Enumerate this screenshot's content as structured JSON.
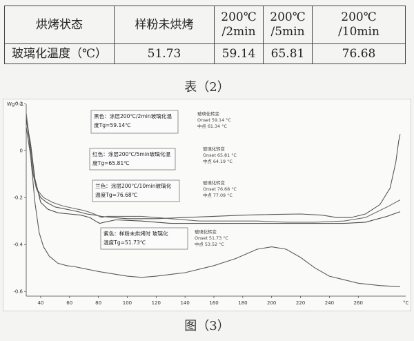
{
  "table": {
    "header": [
      "烘烤状态",
      "样粉未烘烤",
      "200℃\n/2min",
      "200℃\n/5min",
      "200℃\n/10min"
    ],
    "row": [
      "玻璃化温度（℃）",
      "51.73",
      "59.14",
      "65.81",
      "76.68"
    ],
    "caption": "表（2）"
  },
  "figure_caption": "图（3）",
  "chart_data": {
    "type": "line",
    "ylabel": "Wg^-1",
    "xlabel": "°C",
    "xlim": [
      30,
      290
    ],
    "ylim": [
      -0.62,
      0.18
    ],
    "x_ticks": [
      "40",
      "60",
      "80",
      "100",
      "120",
      "140",
      "160",
      "180",
      "200",
      "220",
      "240",
      "260"
    ],
    "y_ticks": [
      "0.2",
      "0",
      "-0.2",
      "-0.4",
      "-0.6"
    ],
    "grid": false,
    "series": [
      {
        "color": "#555555",
        "points": [
          [
            30,
            0.14
          ],
          [
            32,
            0.05
          ],
          [
            34,
            -0.08
          ],
          [
            37,
            -0.16
          ],
          [
            40,
            -0.2
          ],
          [
            44,
            -0.22
          ],
          [
            50,
            -0.24
          ],
          [
            58,
            -0.25
          ],
          [
            66,
            -0.26
          ],
          [
            72,
            -0.27
          ],
          [
            78,
            -0.275
          ],
          [
            82,
            -0.28
          ],
          [
            90,
            -0.285
          ],
          [
            100,
            -0.29
          ],
          [
            120,
            -0.29
          ],
          [
            140,
            -0.285
          ],
          [
            160,
            -0.28
          ],
          [
            180,
            -0.275
          ],
          [
            200,
            -0.272
          ],
          [
            220,
            -0.27
          ],
          [
            235,
            -0.275
          ],
          [
            245,
            -0.285
          ],
          [
            255,
            -0.285
          ],
          [
            265,
            -0.27
          ],
          [
            275,
            -0.23
          ],
          [
            282,
            -0.16
          ],
          [
            286,
            -0.05
          ],
          [
            288,
            0.04
          ],
          [
            289,
            0.07
          ]
        ]
      },
      {
        "color": "#6a6a6a",
        "points": [
          [
            30,
            0.16
          ],
          [
            32,
            0.06
          ],
          [
            35,
            -0.1
          ],
          [
            38,
            -0.17
          ],
          [
            42,
            -0.2
          ],
          [
            48,
            -0.22
          ],
          [
            55,
            -0.235
          ],
          [
            62,
            -0.245
          ],
          [
            70,
            -0.255
          ],
          [
            75,
            -0.265
          ],
          [
            79,
            -0.275
          ],
          [
            82,
            -0.285
          ],
          [
            86,
            -0.28
          ],
          [
            95,
            -0.28
          ],
          [
            110,
            -0.28
          ],
          [
            130,
            -0.29
          ],
          [
            150,
            -0.3
          ],
          [
            170,
            -0.3
          ],
          [
            190,
            -0.3
          ],
          [
            210,
            -0.305
          ],
          [
            230,
            -0.305
          ],
          [
            250,
            -0.3
          ],
          [
            265,
            -0.285
          ],
          [
            280,
            -0.24
          ],
          [
            289,
            -0.21
          ]
        ]
      },
      {
        "color": "#4a4a4a",
        "points": [
          [
            30,
            0.13
          ],
          [
            33,
            0.03
          ],
          [
            36,
            -0.12
          ],
          [
            40,
            -0.22
          ],
          [
            45,
            -0.25
          ],
          [
            52,
            -0.265
          ],
          [
            60,
            -0.27
          ],
          [
            68,
            -0.275
          ],
          [
            74,
            -0.285
          ],
          [
            78,
            -0.3
          ],
          [
            81,
            -0.31
          ],
          [
            84,
            -0.305
          ],
          [
            92,
            -0.295
          ],
          [
            110,
            -0.3
          ],
          [
            130,
            -0.31
          ],
          [
            150,
            -0.31
          ],
          [
            170,
            -0.31
          ],
          [
            190,
            -0.31
          ],
          [
            210,
            -0.31
          ],
          [
            230,
            -0.31
          ],
          [
            250,
            -0.31
          ],
          [
            265,
            -0.305
          ],
          [
            280,
            -0.28
          ],
          [
            289,
            -0.26
          ]
        ]
      },
      {
        "color": "#5a5a5a",
        "points": [
          [
            30,
            0.1
          ],
          [
            33,
            -0.02
          ],
          [
            36,
            -0.22
          ],
          [
            39,
            -0.35
          ],
          [
            42,
            -0.41
          ],
          [
            46,
            -0.45
          ],
          [
            52,
            -0.48
          ],
          [
            58,
            -0.49
          ],
          [
            64,
            -0.495
          ],
          [
            72,
            -0.505
          ],
          [
            80,
            -0.515
          ],
          [
            90,
            -0.525
          ],
          [
            100,
            -0.535
          ],
          [
            110,
            -0.54
          ],
          [
            120,
            -0.535
          ],
          [
            140,
            -0.52
          ],
          [
            160,
            -0.49
          ],
          [
            175,
            -0.46
          ],
          [
            190,
            -0.42
          ],
          [
            200,
            -0.41
          ],
          [
            210,
            -0.42
          ],
          [
            220,
            -0.455
          ],
          [
            230,
            -0.5
          ],
          [
            240,
            -0.535
          ],
          [
            250,
            -0.55
          ],
          [
            260,
            -0.565
          ],
          [
            275,
            -0.575
          ],
          [
            289,
            -0.58
          ]
        ]
      }
    ],
    "annotations": [
      {
        "lines": [
          "黑色：涂层200℃/2min玻璃化温",
          "度Tg=59.14℃"
        ],
        "side": [
          "玻璃化转变",
          "Onset   59.14 °C",
          "中点    61.34 °C"
        ]
      },
      {
        "lines": [
          "红色：涂层200℃/5min玻璃化温",
          "度Tg=65.81℃"
        ],
        "side": [
          "玻璃化转变",
          "Onset   65.81 °C",
          "中点    64.19 °C"
        ]
      },
      {
        "lines": [
          "兰色：涂层200℃/10min玻璃化",
          "温度Tg=76.68℃"
        ],
        "side": [
          "玻璃化转变",
          "Onset   76.68 °C",
          "中点    77.09 °C"
        ]
      },
      {
        "lines": [
          "紫色：样粉未烘烤时  玻璃化",
          "温度Tg=51.73℃"
        ],
        "side": [
          "玻璃化转变",
          "Onset   51.73 °C",
          "中点    53.52 °C"
        ]
      }
    ]
  }
}
